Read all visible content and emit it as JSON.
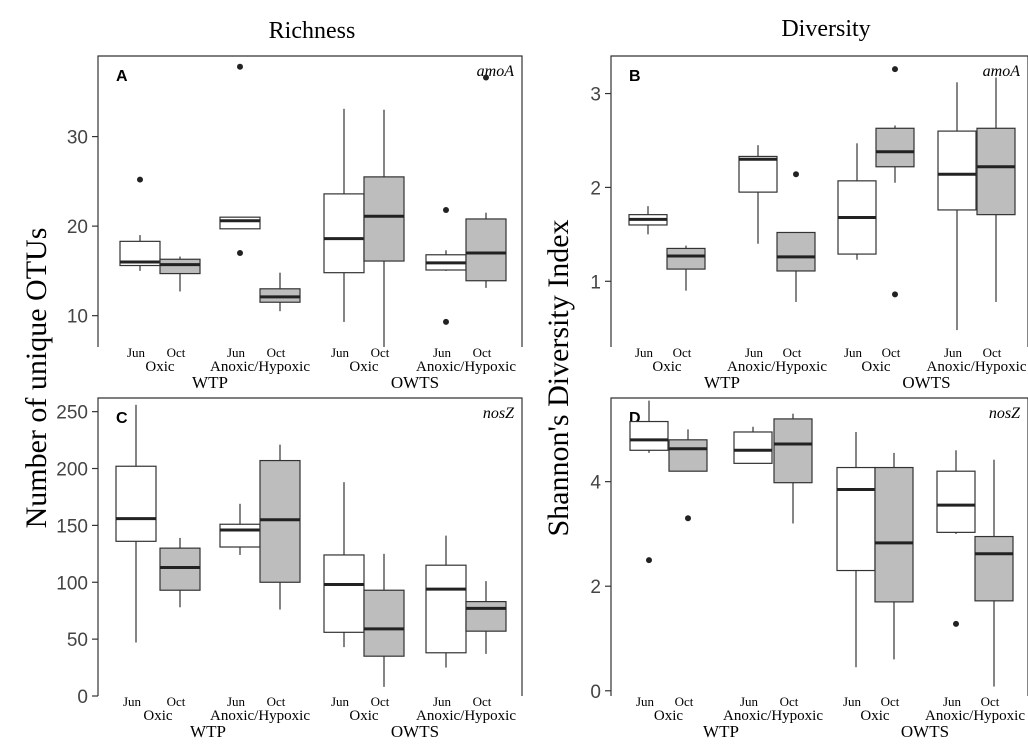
{
  "titles": {
    "left": "Richness",
    "right": "Diversity",
    "ylabel_left": "Number of unique OTUs",
    "ylabel_right": "Shannon's Diversity Index"
  },
  "colors": {
    "jun_fill": "#ffffff",
    "oct_fill": "#bdbdbd",
    "line": "#333333"
  },
  "chart_data": [
    {
      "type": "box",
      "panel": "A",
      "gene": "amoA",
      "column": "Richness",
      "ylabel": "Number of unique OTUs",
      "ylim": [
        6.5,
        39
      ],
      "yticks": [
        10,
        20,
        30
      ],
      "months": [
        "Jun",
        "Oct",
        "Jun",
        "Oct",
        "Jun",
        "Oct",
        "Jun",
        "Oct"
      ],
      "groups": [
        "Oxic",
        "Anoxic/Hypoxic",
        "Oxic",
        "Anoxic/Hypoxic"
      ],
      "sites": [
        "WTP",
        "OWTS"
      ],
      "boxes": [
        {
          "min": 15,
          "q1": 15.6,
          "median": 16,
          "q3": 18.3,
          "max": 19,
          "outliers": [
            25.2
          ]
        },
        {
          "min": 12.7,
          "q1": 14.7,
          "median": 15.7,
          "q3": 16.3,
          "max": 16.6,
          "outliers": []
        },
        {
          "min": 19.7,
          "q1": 19.7,
          "median": 20.6,
          "q3": 21,
          "max": 21,
          "outliers": [
            37.8,
            17
          ]
        },
        {
          "min": 10.5,
          "q1": 11.5,
          "median": 12.1,
          "q3": 13,
          "max": 14.8,
          "outliers": []
        },
        {
          "min": 9.3,
          "q1": 14.8,
          "median": 18.6,
          "q3": 23.6,
          "max": 33.1,
          "outliers": []
        },
        {
          "min": 6.5,
          "q1": 16.1,
          "median": 21.1,
          "q3": 25.5,
          "max": 33,
          "outliers": []
        },
        {
          "min": 15,
          "q1": 15.1,
          "median": 15.9,
          "q3": 16.8,
          "max": 17.3,
          "outliers": [
            21.8,
            9.3
          ]
        },
        {
          "min": 13.1,
          "q1": 13.9,
          "median": 17,
          "q3": 20.8,
          "max": 21.5,
          "outliers": [
            36.6
          ]
        }
      ]
    },
    {
      "type": "box",
      "panel": "B",
      "gene": "amoA",
      "column": "Diversity",
      "ylabel": "Shannon's Diversity Index",
      "ylim": [
        0.3,
        3.4
      ],
      "yticks": [
        1,
        2,
        3
      ],
      "months": [
        "Jun",
        "Oct",
        "Jun",
        "Oct",
        "Jun",
        "Oct",
        "Jun",
        "Oct"
      ],
      "groups": [
        "Oxic",
        "Anoxic/Hypoxic",
        "Oxic",
        "Anoxic/Hypoxic"
      ],
      "sites": [
        "WTP",
        "OWTS"
      ],
      "boxes": [
        {
          "min": 1.5,
          "q1": 1.6,
          "median": 1.66,
          "q3": 1.71,
          "max": 1.8,
          "outliers": []
        },
        {
          "min": 0.9,
          "q1": 1.13,
          "median": 1.27,
          "q3": 1.35,
          "max": 1.38,
          "outliers": []
        },
        {
          "min": 1.4,
          "q1": 1.95,
          "median": 2.3,
          "q3": 2.33,
          "max": 2.45,
          "outliers": []
        },
        {
          "min": 0.78,
          "q1": 1.11,
          "median": 1.26,
          "q3": 1.52,
          "max": 1.52,
          "outliers": [
            2.14
          ]
        },
        {
          "min": 1.23,
          "q1": 1.29,
          "median": 1.68,
          "q3": 2.07,
          "max": 2.47,
          "outliers": []
        },
        {
          "min": 2.05,
          "q1": 2.22,
          "median": 2.38,
          "q3": 2.63,
          "max": 2.66,
          "outliers": [
            3.26,
            0.86
          ]
        },
        {
          "min": 0.48,
          "q1": 1.76,
          "median": 2.14,
          "q3": 2.6,
          "max": 3.12,
          "outliers": []
        },
        {
          "min": 0.78,
          "q1": 1.71,
          "median": 2.22,
          "q3": 2.63,
          "max": 3.17,
          "outliers": []
        }
      ]
    },
    {
      "type": "box",
      "panel": "C",
      "gene": "nosZ",
      "column": "Richness",
      "ylabel": "Number of unique OTUs",
      "ylim": [
        0,
        262
      ],
      "yticks": [
        0,
        50,
        100,
        150,
        200,
        250
      ],
      "months": [
        "Jun",
        "Oct",
        "Jun",
        "Oct",
        "Jun",
        "Oct",
        "Jun",
        "Oct"
      ],
      "groups": [
        "Oxic",
        "Anoxic/Hypoxic",
        "Oxic",
        "Anoxic/Hypoxic"
      ],
      "sites": [
        "WTP",
        "OWTS"
      ],
      "boxes": [
        {
          "min": 47,
          "q1": 136,
          "median": 156,
          "q3": 202,
          "max": 256,
          "outliers": []
        },
        {
          "min": 78,
          "q1": 93,
          "median": 113,
          "q3": 130,
          "max": 139,
          "outliers": []
        },
        {
          "min": 124,
          "q1": 131,
          "median": 146,
          "q3": 151,
          "max": 169,
          "outliers": []
        },
        {
          "min": 76,
          "q1": 100,
          "median": 155,
          "q3": 207,
          "max": 221,
          "outliers": []
        },
        {
          "min": 43,
          "q1": 56,
          "median": 98,
          "q3": 124,
          "max": 188,
          "outliers": []
        },
        {
          "min": 8,
          "q1": 35,
          "median": 59,
          "q3": 93,
          "max": 125,
          "outliers": []
        },
        {
          "min": 25,
          "q1": 38,
          "median": 94,
          "q3": 115,
          "max": 141,
          "outliers": []
        },
        {
          "min": 37,
          "q1": 57,
          "median": 77,
          "q3": 83,
          "max": 101,
          "outliers": []
        }
      ]
    },
    {
      "type": "box",
      "panel": "D",
      "gene": "nosZ",
      "column": "Diversity",
      "ylabel": "Shannon's Diversity Index",
      "ylim": [
        -0.1,
        5.6
      ],
      "yticks": [
        0,
        2,
        4
      ],
      "months": [
        "Jun",
        "Oct",
        "Jun",
        "Oct",
        "Jun",
        "Oct",
        "Jun",
        "Oct"
      ],
      "groups": [
        "Oxic",
        "Anoxic/Hypoxic",
        "Oxic",
        "Anoxic/Hypoxic"
      ],
      "sites": [
        "WTP",
        "OWTS"
      ],
      "boxes": [
        {
          "min": 4.55,
          "q1": 4.6,
          "median": 4.8,
          "q3": 5.15,
          "max": 5.55,
          "outliers": [
            2.5
          ]
        },
        {
          "min": 4.2,
          "q1": 4.2,
          "median": 4.63,
          "q3": 4.8,
          "max": 5,
          "outliers": [
            3.3
          ]
        },
        {
          "min": 4.35,
          "q1": 4.35,
          "median": 4.6,
          "q3": 4.95,
          "max": 5.05,
          "outliers": []
        },
        {
          "min": 3.2,
          "q1": 3.98,
          "median": 4.72,
          "q3": 5.2,
          "max": 5.3,
          "outliers": []
        },
        {
          "min": 0.45,
          "q1": 2.3,
          "median": 3.85,
          "q3": 4.27,
          "max": 4.95,
          "outliers": []
        },
        {
          "min": 0.6,
          "q1": 1.7,
          "median": 2.83,
          "q3": 4.27,
          "max": 4.55,
          "outliers": []
        },
        {
          "min": 3.0,
          "q1": 3.03,
          "median": 3.55,
          "q3": 4.2,
          "max": 4.6,
          "outliers": [
            1.28
          ]
        },
        {
          "min": 0.08,
          "q1": 1.72,
          "median": 2.62,
          "q3": 2.95,
          "max": 4.42,
          "outliers": []
        }
      ]
    }
  ]
}
